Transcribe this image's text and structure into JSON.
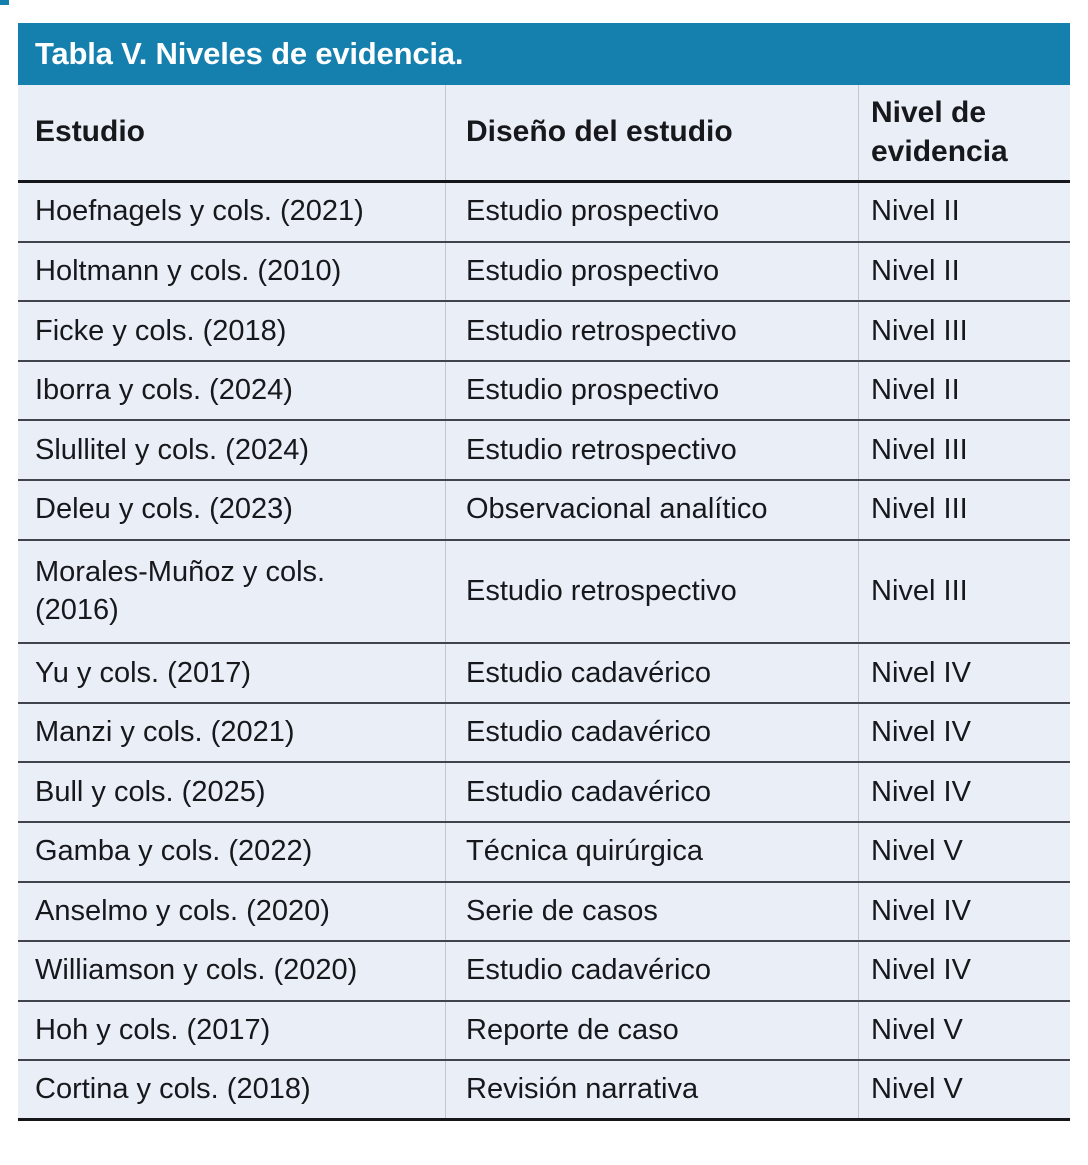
{
  "title": "Tabla V. Niveles de evidencia.",
  "columns": {
    "study": "Estudio",
    "design": "Diseño del estudio",
    "level": "Nivel de evidencia"
  },
  "table": {
    "rows": [
      {
        "study": "Hoefnagels y cols. (2021)",
        "design": "Estudio prospectivo",
        "level": "Nivel II"
      },
      {
        "study": "Holtmann y cols. (2010)",
        "design": "Estudio prospectivo",
        "level": "Nivel II"
      },
      {
        "study": "Ficke y cols. (2018)",
        "design": "Estudio retrospectivo",
        "level": "Nivel III"
      },
      {
        "study": "Iborra y cols. (2024)",
        "design": "Estudio prospectivo",
        "level": "Nivel II"
      },
      {
        "study": "Slullitel y cols. (2024)",
        "design": "Estudio retrospectivo",
        "level": "Nivel III"
      },
      {
        "study": "Deleu y cols. (2023)",
        "design": "Observacional analítico",
        "level": "Nivel III"
      },
      {
        "study": "Morales-Muñoz y cols.\n(2016)",
        "design": "Estudio retrospectivo",
        "level": "Nivel III"
      },
      {
        "study": "Yu y cols. (2017)",
        "design": "Estudio cadavérico",
        "level": "Nivel IV"
      },
      {
        "study": "Manzi y cols. (2021)",
        "design": "Estudio cadavérico",
        "level": "Nivel IV"
      },
      {
        "study": "Bull y cols. (2025)",
        "design": "Estudio cadavérico",
        "level": "Nivel IV"
      },
      {
        "study": "Gamba y cols. (2022)",
        "design": "Técnica quirúrgica",
        "level": "Nivel V"
      },
      {
        "study": "Anselmo y cols. (2020)",
        "design": "Serie de casos",
        "level": "Nivel IV"
      },
      {
        "study": "Williamson y cols. (2020)",
        "design": "Estudio cadavérico",
        "level": "Nivel IV"
      },
      {
        "study": "Hoh y cols. (2017)",
        "design": "Reporte de caso",
        "level": "Nivel V"
      },
      {
        "study": "Cortina y cols. (2018)",
        "design": "Revisión narrativa",
        "level": "Nivel V"
      }
    ]
  },
  "colors": {
    "accent_teal": "#1580AE",
    "table_background": "#E9EEF7",
    "row_separator": "#41444D",
    "heavy_rule": "#15161A"
  }
}
